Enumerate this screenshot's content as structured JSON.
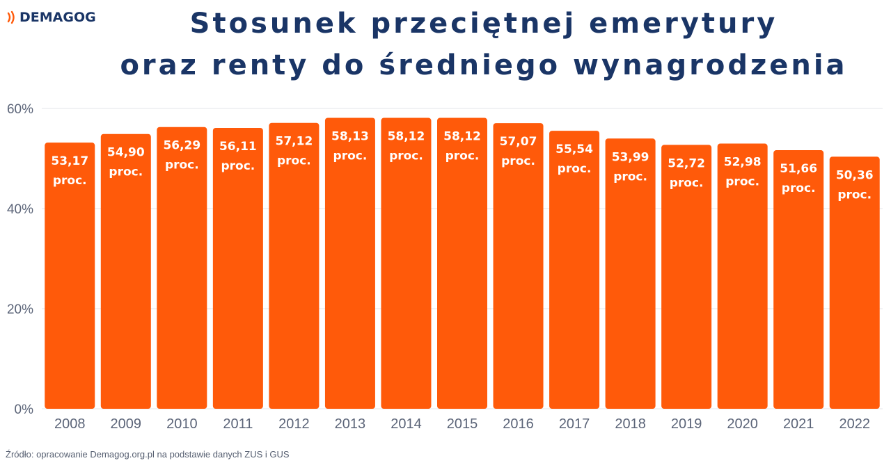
{
  "brand": {
    "name": "DEMAGOG",
    "accent_color": "#ff5a0a",
    "text_color": "#1a3566"
  },
  "title": {
    "line1": "Stosunek przeciętnej emerytury",
    "line2": "oraz renty do średniego wynagrodzenia"
  },
  "source": "Źródło: opracowanie Demagog.org.pl na podstawie danych ZUS i GUS",
  "chart_data": {
    "type": "bar",
    "categories": [
      "2008",
      "2009",
      "2010",
      "2011",
      "2012",
      "2013",
      "2014",
      "2015",
      "2016",
      "2017",
      "2018",
      "2019",
      "2020",
      "2021",
      "2022"
    ],
    "values": [
      53.17,
      54.9,
      56.29,
      56.11,
      57.12,
      58.13,
      58.12,
      58.12,
      57.07,
      55.54,
      53.99,
      52.72,
      52.98,
      51.66,
      50.36
    ],
    "value_labels": [
      "53,17",
      "54,90",
      "56,29",
      "56,11",
      "57,12",
      "58,13",
      "58,12",
      "58,12",
      "57,07",
      "55,54",
      "53,99",
      "52,72",
      "52,98",
      "51,66",
      "50,36"
    ],
    "value_unit": "proc.",
    "ylim": [
      0,
      60
    ],
    "yticks": [
      0,
      20,
      40,
      60
    ],
    "ytick_labels": [
      "0%",
      "20%",
      "40%",
      "60%"
    ],
    "bar_color": "#ff5a0a",
    "grid": true
  }
}
